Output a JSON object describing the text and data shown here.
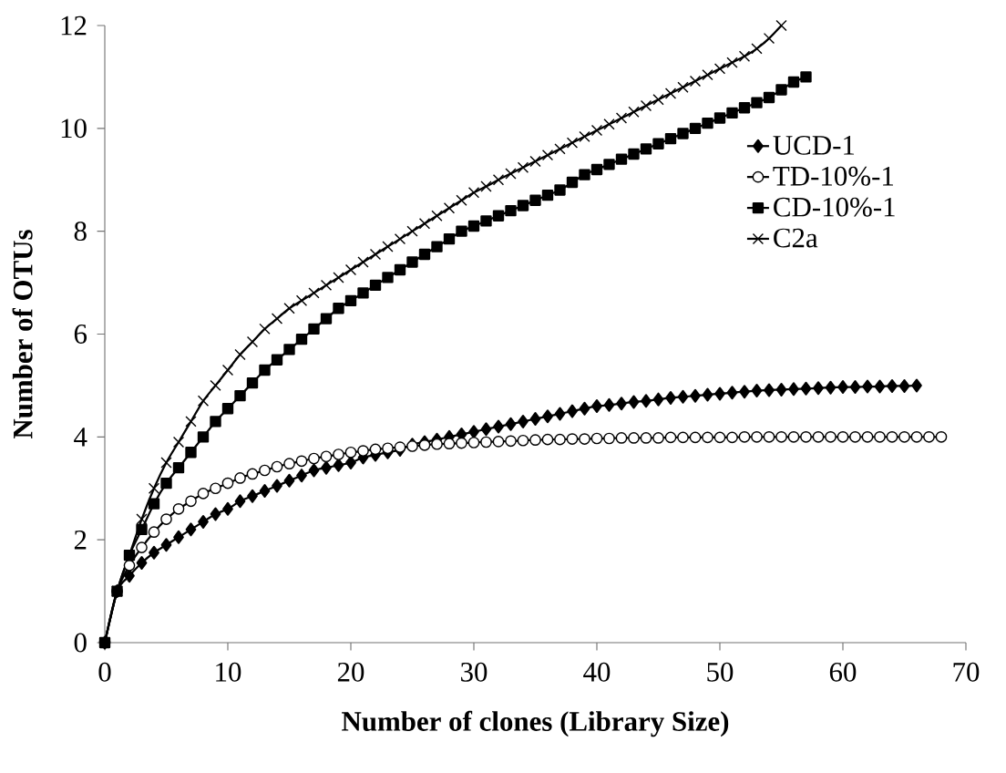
{
  "chart_data": {
    "type": "line",
    "xlabel": "Number of  clones (Library Size)",
    "ylabel": "Number of OTUs",
    "x": [
      0,
      1,
      2,
      3,
      4,
      5,
      6,
      7,
      8,
      9,
      10,
      11,
      12,
      13,
      14,
      15,
      16,
      17,
      18,
      19,
      20,
      21,
      22,
      23,
      24,
      25,
      26,
      27,
      28,
      29,
      30,
      31,
      32,
      33,
      34,
      35,
      36,
      37,
      38,
      39,
      40,
      41,
      42,
      43,
      44,
      45,
      46,
      47,
      48,
      49,
      50,
      51,
      52,
      53,
      54,
      55,
      56,
      57,
      58,
      59,
      60,
      61,
      62,
      63,
      64,
      65,
      66,
      67,
      68
    ],
    "series": [
      {
        "name": "UCD-1",
        "color": "#000000",
        "marker": "diamond",
        "values": [
          0,
          1,
          1.3,
          1.55,
          1.75,
          1.9,
          2.05,
          2.2,
          2.35,
          2.5,
          2.6,
          2.75,
          2.85,
          2.95,
          3.05,
          3.15,
          3.25,
          3.35,
          3.4,
          3.45,
          3.5,
          3.6,
          3.65,
          3.7,
          3.75,
          3.85,
          3.9,
          3.95,
          4.0,
          4.05,
          4.1,
          4.15,
          4.2,
          4.25,
          4.3,
          4.35,
          4.4,
          4.45,
          4.5,
          4.55,
          4.6,
          4.62,
          4.65,
          4.68,
          4.7,
          4.73,
          4.76,
          4.78,
          4.8,
          4.82,
          4.84,
          4.86,
          4.88,
          4.9,
          4.91,
          4.92,
          4.93,
          4.94,
          4.95,
          4.96,
          4.97,
          4.97,
          4.98,
          4.98,
          4.99,
          4.99,
          5,
          null,
          null
        ]
      },
      {
        "name": "TD-10%-1",
        "color": "#000000",
        "marker": "circle",
        "values": [
          0,
          1,
          1.5,
          1.85,
          2.15,
          2.4,
          2.6,
          2.75,
          2.9,
          3.0,
          3.1,
          3.2,
          3.28,
          3.35,
          3.42,
          3.48,
          3.53,
          3.58,
          3.62,
          3.66,
          3.7,
          3.73,
          3.76,
          3.78,
          3.8,
          3.82,
          3.84,
          3.86,
          3.87,
          3.88,
          3.89,
          3.9,
          3.91,
          3.92,
          3.93,
          3.94,
          3.95,
          3.95,
          3.96,
          3.96,
          3.97,
          3.97,
          3.98,
          3.98,
          3.98,
          3.98,
          3.99,
          3.99,
          3.99,
          3.99,
          3.99,
          3.99,
          4,
          4,
          4,
          4,
          4,
          4,
          4,
          4,
          4,
          4,
          4,
          4,
          4,
          4,
          4,
          4,
          4
        ]
      },
      {
        "name": "CD-10%-1",
        "color": "#000000",
        "marker": "square",
        "values": [
          0,
          1,
          1.7,
          2.2,
          2.7,
          3.1,
          3.4,
          3.7,
          4.0,
          4.3,
          4.55,
          4.8,
          5.05,
          5.3,
          5.5,
          5.7,
          5.9,
          6.1,
          6.3,
          6.5,
          6.65,
          6.8,
          6.95,
          7.1,
          7.25,
          7.4,
          7.55,
          7.7,
          7.85,
          8.0,
          8.1,
          8.2,
          8.3,
          8.4,
          8.5,
          8.6,
          8.7,
          8.8,
          8.95,
          9.1,
          9.2,
          9.3,
          9.4,
          9.5,
          9.6,
          9.7,
          9.8,
          9.9,
          10.0,
          10.1,
          10.2,
          10.3,
          10.4,
          10.5,
          10.6,
          10.75,
          10.9,
          11,
          null,
          null,
          null,
          null,
          null,
          null,
          null,
          null,
          null,
          null,
          null
        ]
      },
      {
        "name": "C2a",
        "color": "#000000",
        "marker": "cross",
        "values": [
          0,
          1,
          1.7,
          2.4,
          3.0,
          3.5,
          3.9,
          4.3,
          4.7,
          5.0,
          5.3,
          5.6,
          5.85,
          6.1,
          6.3,
          6.5,
          6.65,
          6.8,
          6.95,
          7.1,
          7.25,
          7.4,
          7.55,
          7.7,
          7.85,
          8.0,
          8.15,
          8.3,
          8.45,
          8.6,
          8.75,
          8.87,
          9.0,
          9.12,
          9.24,
          9.36,
          9.48,
          9.6,
          9.72,
          9.84,
          9.96,
          10.08,
          10.2,
          10.32,
          10.44,
          10.56,
          10.68,
          10.8,
          10.92,
          11.04,
          11.16,
          11.28,
          11.4,
          11.55,
          11.75,
          12,
          null,
          null,
          null,
          null,
          null,
          null,
          null,
          null,
          null,
          null,
          null,
          null,
          null
        ]
      }
    ],
    "xlim": [
      0,
      70
    ],
    "ylim": [
      0,
      12
    ],
    "xticks": [
      0,
      10,
      20,
      30,
      40,
      50,
      60,
      70
    ],
    "yticks": [
      0,
      2,
      4,
      6,
      8,
      10,
      12
    ],
    "legend": "right",
    "line_style": "solid",
    "grid": false
  }
}
